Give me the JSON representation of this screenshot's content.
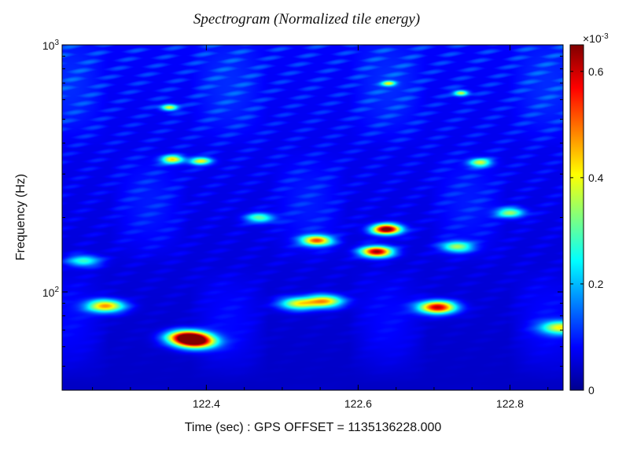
{
  "chart_data": {
    "type": "heatmap",
    "title": "Spectrogram (Normalized tile energy)",
    "xlabel": "Time (sec) : GPS OFFSET = 1135136228.000",
    "ylabel": "Frequency (Hz)",
    "x_scale": "linear",
    "y_scale": "log",
    "xlim": [
      122.21,
      122.87
    ],
    "ylim": [
      40,
      1000
    ],
    "x_ticks": [
      122.4,
      122.6,
      122.8
    ],
    "x_tick_labels": [
      "122.4",
      "122.6",
      "122.8"
    ],
    "y_ticks": [
      100,
      1000
    ],
    "y_tick_labels": [
      {
        "base": "10",
        "exp": "2"
      },
      {
        "base": "10",
        "exp": "3"
      }
    ],
    "colorbar": {
      "colormap": "jet",
      "multiplier": {
        "base": "×10",
        "exp": "-3"
      },
      "range": [
        0,
        0.00065
      ],
      "ticks": [
        0,
        0.2,
        0.4,
        0.6
      ],
      "tick_labels": [
        "0",
        "0.2",
        "0.4",
        "0.6"
      ]
    },
    "background_level": 8e-05,
    "hotspots": [
      {
        "t": 122.637,
        "f": 180,
        "energy": 0.00064
      },
      {
        "t": 122.624,
        "f": 146,
        "energy": 0.00058
      },
      {
        "t": 122.704,
        "f": 87,
        "energy": 0.00056
      },
      {
        "t": 122.374,
        "f": 66,
        "energy": 0.00057
      },
      {
        "t": 122.386,
        "f": 63,
        "energy": 0.00052
      },
      {
        "t": 122.267,
        "f": 88,
        "energy": 0.00042
      },
      {
        "t": 122.545,
        "f": 162,
        "energy": 0.00045
      },
      {
        "t": 122.555,
        "f": 92,
        "energy": 0.0004
      },
      {
        "t": 122.52,
        "f": 90,
        "energy": 0.00032
      },
      {
        "t": 122.355,
        "f": 345,
        "energy": 0.00036
      },
      {
        "t": 122.392,
        "f": 340,
        "energy": 0.0003
      },
      {
        "t": 122.351,
        "f": 560,
        "energy": 0.00032
      },
      {
        "t": 122.735,
        "f": 640,
        "energy": 0.0003
      },
      {
        "t": 122.64,
        "f": 700,
        "energy": 0.00026
      },
      {
        "t": 122.8,
        "f": 210,
        "energy": 0.00028
      },
      {
        "t": 122.76,
        "f": 335,
        "energy": 0.0003
      },
      {
        "t": 122.866,
        "f": 72,
        "energy": 0.00033
      },
      {
        "t": 122.73,
        "f": 153,
        "energy": 0.00028
      },
      {
        "t": 122.238,
        "f": 134,
        "energy": 0.00022
      },
      {
        "t": 122.47,
        "f": 200,
        "energy": 0.00024
      }
    ]
  }
}
